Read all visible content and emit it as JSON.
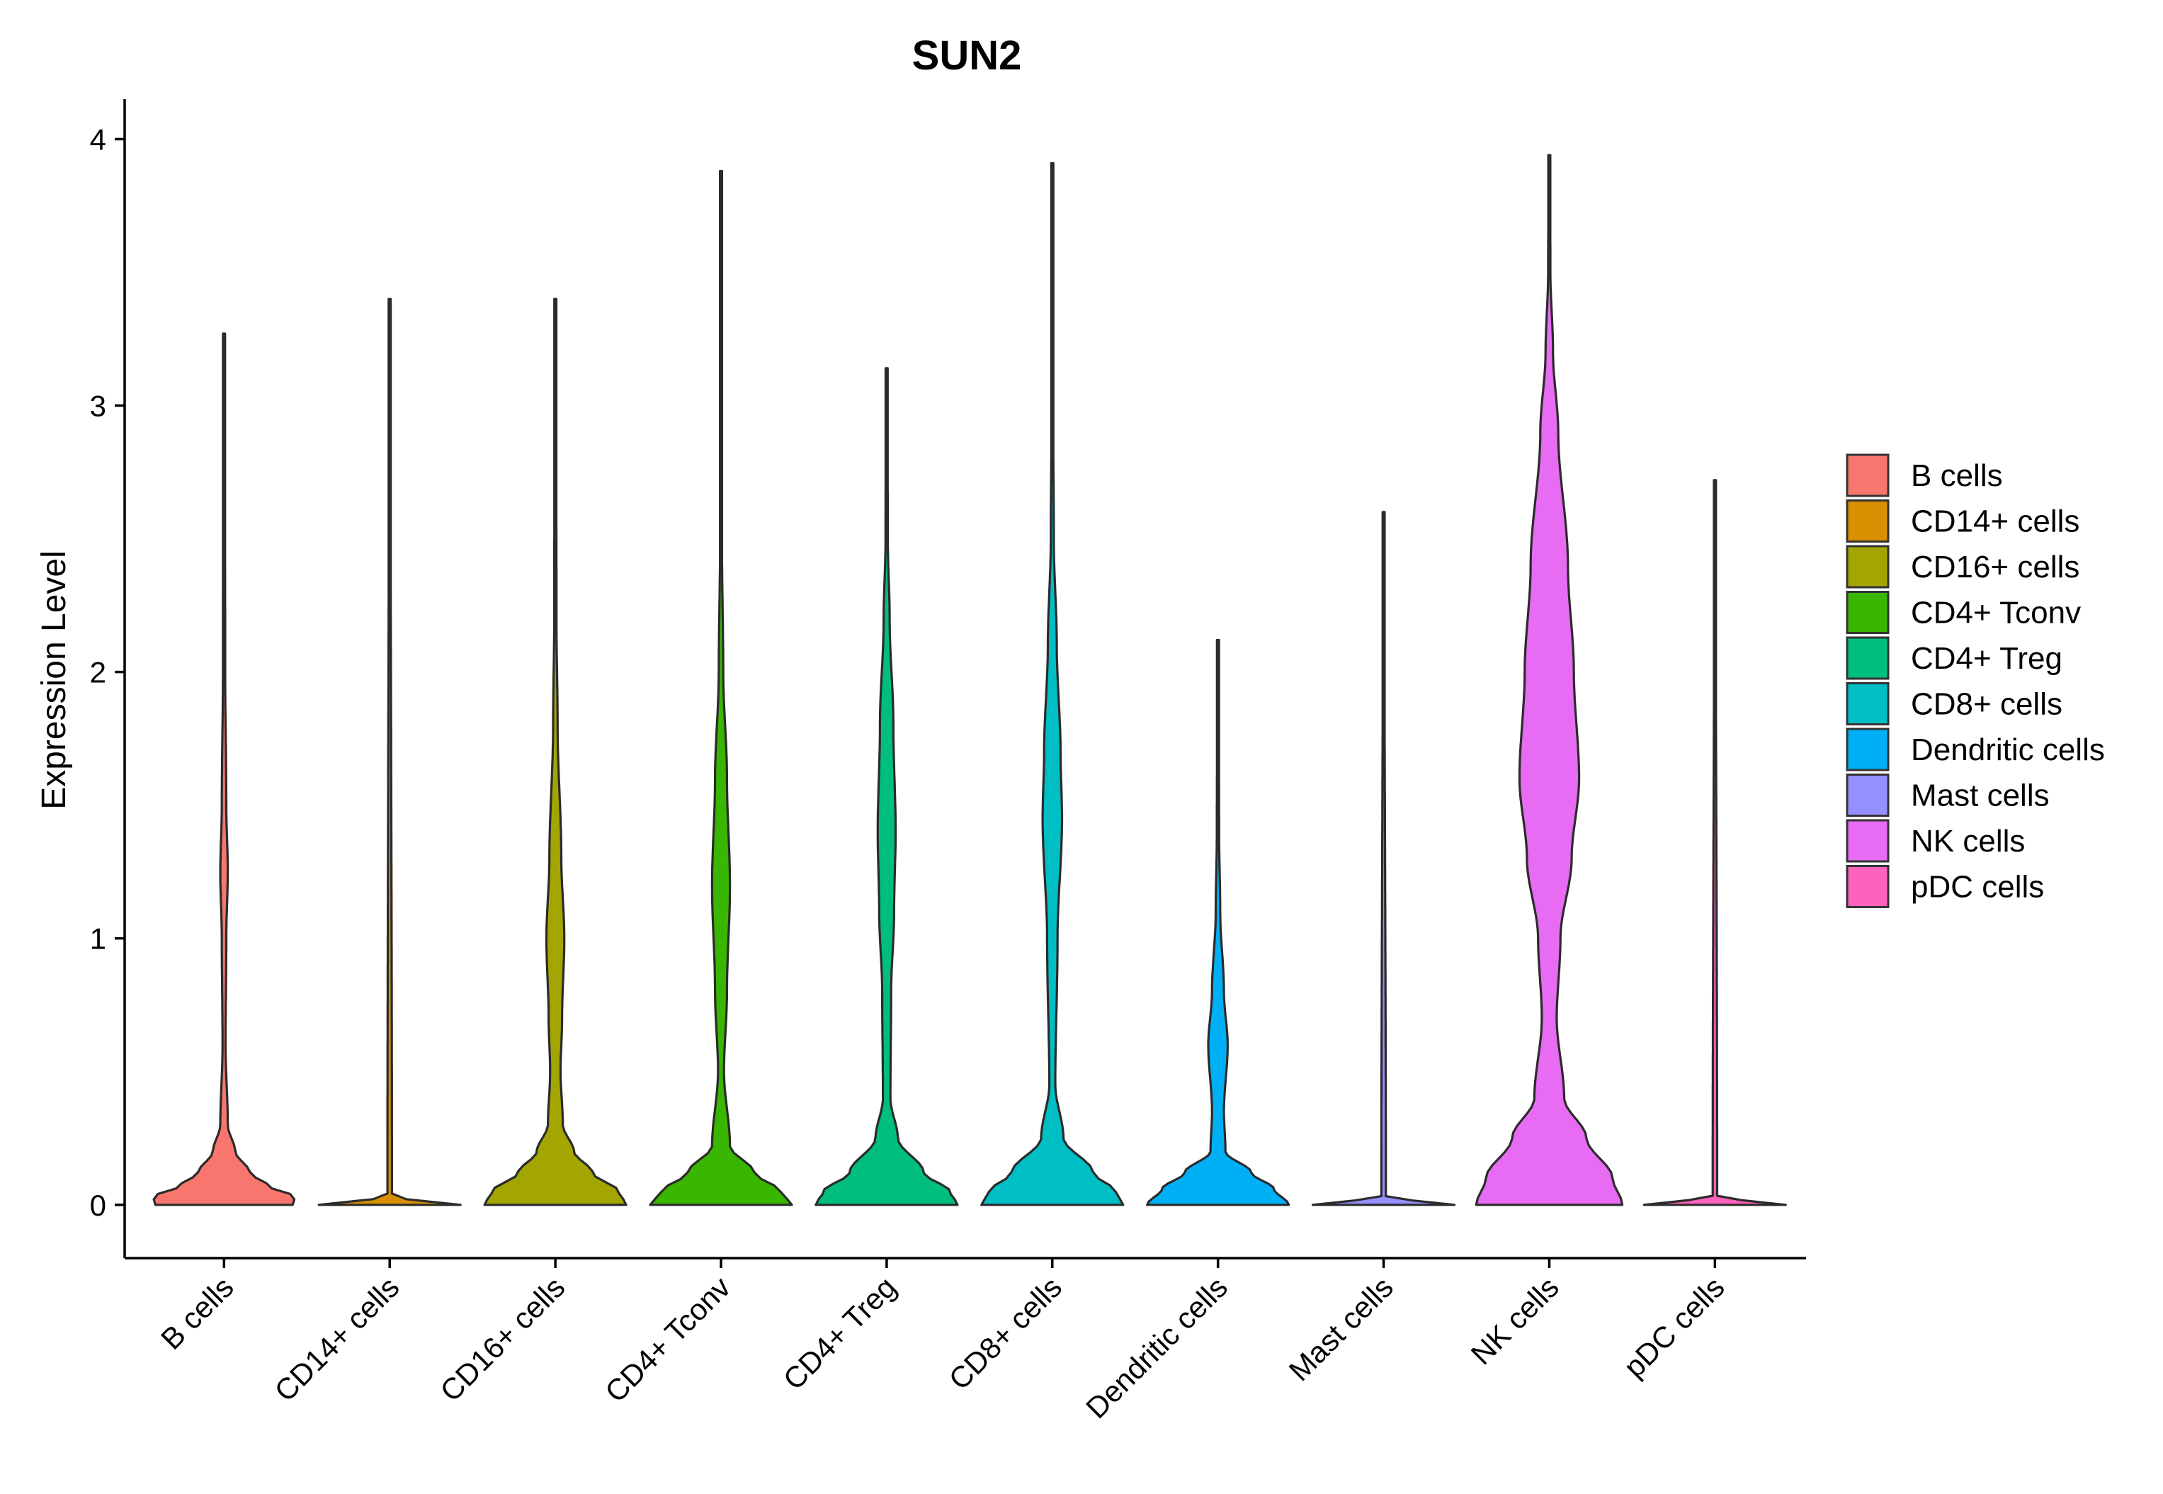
{
  "chart_data": {
    "type": "violin",
    "title": "SUN2",
    "xlabel": "",
    "ylabel": "Expression Level",
    "ylim": [
      -0.2,
      4.15
    ],
    "yticks": [
      0,
      1,
      2,
      3,
      4
    ],
    "categories": [
      "B cells",
      "CD14+ cells",
      "CD16+ cells",
      "CD4+ Tconv",
      "CD4+ Treg",
      "CD8+ cells",
      "Dendritic cells",
      "Mast cells",
      "NK cells",
      "pDC cells"
    ],
    "colors": [
      "#F8766D",
      "#D89000",
      "#A3A500",
      "#39B600",
      "#00BF7D",
      "#00BFC4",
      "#00B0F6",
      "#9590FF",
      "#E76BF3",
      "#FF62BC"
    ],
    "series": [
      {
        "name": "B cells",
        "max": 3.27,
        "profile": [
          [
            0,
            0.92
          ],
          [
            0.03,
            0.95
          ],
          [
            0.07,
            0.6
          ],
          [
            0.12,
            0.35
          ],
          [
            0.2,
            0.15
          ],
          [
            0.3,
            0.05
          ],
          [
            0.6,
            0.02
          ],
          [
            1.0,
            0.03
          ],
          [
            1.25,
            0.05
          ],
          [
            1.5,
            0.03
          ],
          [
            2.0,
            0.015
          ],
          [
            3.27,
            0.008
          ]
        ]
      },
      {
        "name": "CD14+ cells",
        "max": 3.4,
        "profile": [
          [
            0,
            0.95
          ],
          [
            0.01,
            0.5
          ],
          [
            0.03,
            0.03
          ],
          [
            3.4,
            0.008
          ]
        ]
      },
      {
        "name": "CD16+ cells",
        "max": 3.4,
        "profile": [
          [
            0,
            0.95
          ],
          [
            0.05,
            0.85
          ],
          [
            0.12,
            0.5
          ],
          [
            0.2,
            0.25
          ],
          [
            0.3,
            0.1
          ],
          [
            0.5,
            0.07
          ],
          [
            0.7,
            0.09
          ],
          [
            1.0,
            0.12
          ],
          [
            1.3,
            0.08
          ],
          [
            1.8,
            0.03
          ],
          [
            2.2,
            0.015
          ],
          [
            3.4,
            0.008
          ]
        ]
      },
      {
        "name": "CD4+ Tconv",
        "max": 3.88,
        "profile": [
          [
            0,
            0.95
          ],
          [
            0.05,
            0.8
          ],
          [
            0.12,
            0.45
          ],
          [
            0.22,
            0.12
          ],
          [
            0.5,
            0.04
          ],
          [
            0.8,
            0.08
          ],
          [
            1.2,
            0.12
          ],
          [
            1.6,
            0.08
          ],
          [
            2.0,
            0.03
          ],
          [
            2.5,
            0.012
          ],
          [
            3.88,
            0.008
          ]
        ]
      },
      {
        "name": "CD4+ Treg",
        "max": 3.14,
        "profile": [
          [
            0,
            0.95
          ],
          [
            0.05,
            0.85
          ],
          [
            0.12,
            0.5
          ],
          [
            0.25,
            0.15
          ],
          [
            0.4,
            0.05
          ],
          [
            0.8,
            0.06
          ],
          [
            1.1,
            0.1
          ],
          [
            1.4,
            0.12
          ],
          [
            1.8,
            0.09
          ],
          [
            2.2,
            0.04
          ],
          [
            2.5,
            0.015
          ],
          [
            3.14,
            0.008
          ]
        ]
      },
      {
        "name": "CD8+ cells",
        "max": 3.91,
        "profile": [
          [
            0,
            0.95
          ],
          [
            0.05,
            0.85
          ],
          [
            0.12,
            0.55
          ],
          [
            0.25,
            0.15
          ],
          [
            0.45,
            0.04
          ],
          [
            1.0,
            0.07
          ],
          [
            1.45,
            0.13
          ],
          [
            1.7,
            0.11
          ],
          [
            2.1,
            0.06
          ],
          [
            2.5,
            0.02
          ],
          [
            3.0,
            0.01
          ],
          [
            3.91,
            0.008
          ]
        ]
      },
      {
        "name": "Dendritic cells",
        "max": 2.12,
        "profile": [
          [
            0,
            0.95
          ],
          [
            0.06,
            0.75
          ],
          [
            0.12,
            0.45
          ],
          [
            0.2,
            0.1
          ],
          [
            0.35,
            0.08
          ],
          [
            0.6,
            0.13
          ],
          [
            0.8,
            0.08
          ],
          [
            1.1,
            0.03
          ],
          [
            1.4,
            0.015
          ],
          [
            2.12,
            0.008
          ]
        ]
      },
      {
        "name": "Mast cells",
        "max": 2.6,
        "profile": [
          [
            0,
            0.95
          ],
          [
            0.01,
            0.5
          ],
          [
            0.03,
            0.03
          ],
          [
            2.6,
            0.008
          ]
        ]
      },
      {
        "name": "NK cells",
        "max": 3.94,
        "profile": [
          [
            0,
            0.98
          ],
          [
            0.1,
            0.85
          ],
          [
            0.25,
            0.5
          ],
          [
            0.4,
            0.2
          ],
          [
            0.7,
            0.1
          ],
          [
            1.0,
            0.15
          ],
          [
            1.3,
            0.3
          ],
          [
            1.6,
            0.4
          ],
          [
            2.0,
            0.33
          ],
          [
            2.4,
            0.25
          ],
          [
            2.9,
            0.12
          ],
          [
            3.2,
            0.05
          ],
          [
            3.5,
            0.015
          ],
          [
            3.94,
            0.008
          ]
        ]
      },
      {
        "name": "pDC cells",
        "max": 2.72,
        "profile": [
          [
            0,
            0.95
          ],
          [
            0.01,
            0.5
          ],
          [
            0.03,
            0.03
          ],
          [
            2.72,
            0.008
          ]
        ]
      }
    ],
    "grid": false,
    "legend": "right"
  }
}
